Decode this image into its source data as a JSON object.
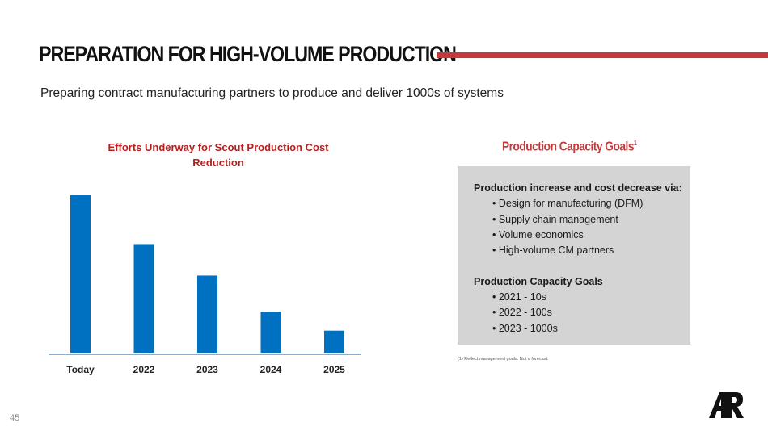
{
  "header": {
    "title": "PREPARATION FOR HIGH-VOLUME PRODUCTION",
    "subtitle": "Preparing contract manufacturing partners to produce and deliver 1000s of systems"
  },
  "chart_data": {
    "type": "bar",
    "title": "Efforts Underway for Scout Production Cost Reduction",
    "title_lines": [
      "Efforts Underway for Scout Production Cost",
      "Reduction"
    ],
    "categories": [
      "Today",
      "2022",
      "2023",
      "2024",
      "2025"
    ],
    "values": [
      100,
      69,
      49,
      26,
      14
    ],
    "xlabel": "",
    "ylabel": "",
    "ylim": [
      0,
      100
    ],
    "grid": false,
    "legend": "none",
    "bar_color": "#0070c0",
    "axis_color": "#4a7bb0"
  },
  "capacity": {
    "title": "Production Capacity Goals",
    "title_sup": "1",
    "section1_heading": "Production increase and cost decrease via:",
    "section1_items": [
      "• Design for manufacturing (DFM)",
      "• Supply chain management",
      "• Volume economics",
      "• High-volume CM partners"
    ],
    "section2_heading": "Production Capacity Goals",
    "section2_items": [
      "• 2021 - 10s",
      "• 2022 - 100s",
      "• 2023 - 1000s"
    ],
    "box_color": "#d4d4d4",
    "title_color": "#c23a3c"
  },
  "footnote": "(1) Reflect management goals. Not a forecast.",
  "page_number": "45",
  "logo": "AR",
  "colors": {
    "accent": "#c8373a",
    "bar": "#0070c0"
  }
}
